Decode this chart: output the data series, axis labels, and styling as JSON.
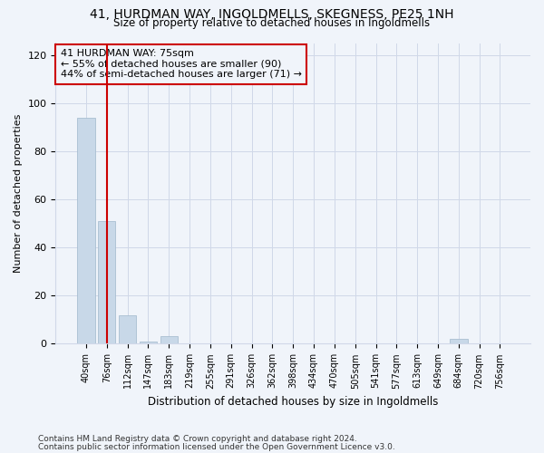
{
  "title": "41, HURDMAN WAY, INGOLDMELLS, SKEGNESS, PE25 1NH",
  "subtitle": "Size of property relative to detached houses in Ingoldmells",
  "xlabel": "Distribution of detached houses by size in Ingoldmells",
  "ylabel": "Number of detached properties",
  "bar_color": "#c8d8e8",
  "bar_edge_color": "#a0b8cc",
  "categories": [
    "40sqm",
    "76sqm",
    "112sqm",
    "147sqm",
    "183sqm",
    "219sqm",
    "255sqm",
    "291sqm",
    "326sqm",
    "362sqm",
    "398sqm",
    "434sqm",
    "470sqm",
    "505sqm",
    "541sqm",
    "577sqm",
    "613sqm",
    "649sqm",
    "684sqm",
    "720sqm",
    "756sqm"
  ],
  "values": [
    94,
    51,
    12,
    1,
    3,
    0,
    0,
    0,
    0,
    0,
    0,
    0,
    0,
    0,
    0,
    0,
    0,
    0,
    2,
    0,
    0
  ],
  "ylim": [
    0,
    125
  ],
  "yticks": [
    0,
    20,
    40,
    60,
    80,
    100,
    120
  ],
  "property_label": "41 HURDMAN WAY: 75sqm",
  "annotation_line1": "← 55% of detached houses are smaller (90)",
  "annotation_line2": "44% of semi-detached houses are larger (71) →",
  "vline_x": 1.0,
  "footer1": "Contains HM Land Registry data © Crown copyright and database right 2024.",
  "footer2": "Contains public sector information licensed under the Open Government Licence v3.0.",
  "bg_color": "#f0f4fa",
  "grid_color": "#d0d8e8",
  "vline_color": "#cc0000",
  "box_edge_color": "#cc0000"
}
